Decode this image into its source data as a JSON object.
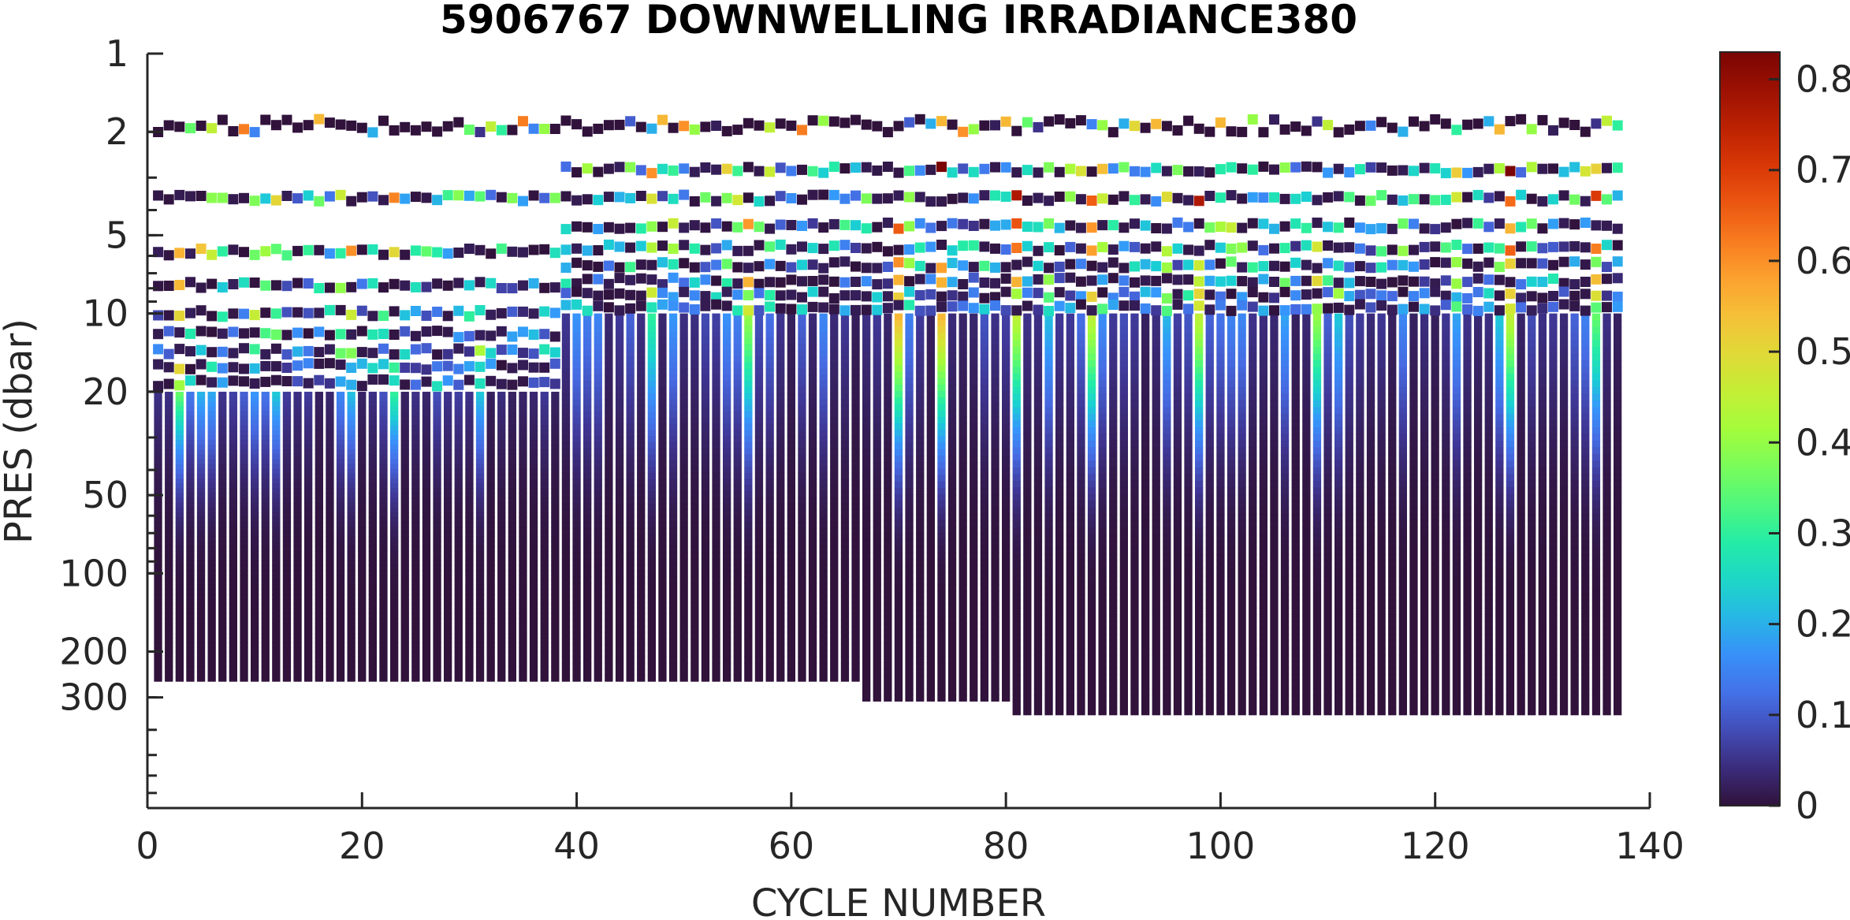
{
  "chart_data": {
    "type": "heatmap",
    "title": "5906767  DOWNWELLING IRRADIANCE380",
    "xlabel": "CYCLE NUMBER",
    "ylabel": "PRES (dbar)",
    "x_ticks": [
      "0",
      "20",
      "40",
      "60",
      "80",
      "100",
      "120",
      "140"
    ],
    "xlim": [
      0,
      140
    ],
    "y_scale": "log",
    "y_reversed": true,
    "y_ticks": [
      "1",
      "2",
      "5",
      "10",
      "20",
      "50",
      "100",
      "200",
      "300"
    ],
    "ylim": [
      1,
      800
    ],
    "colorbar": {
      "colormap": "turbo",
      "range": [
        0,
        0.83
      ],
      "ticks": [
        "0",
        "0.1",
        "0.2",
        "0.3",
        "0.4",
        "0.5",
        "0.6",
        "0.7",
        "0.8"
      ]
    },
    "cycles": {
      "first": 1,
      "last": 137
    },
    "max_pressure_segments": [
      {
        "cycle_from": 1,
        "cycle_to": 66,
        "pres_dbar": 260
      },
      {
        "cycle_from": 67,
        "cycle_to": 80,
        "pres_dbar": 310
      },
      {
        "cycle_from": 81,
        "cycle_to": 137,
        "pres_dbar": 350
      }
    ],
    "surface_pres_dbar": 1.9,
    "discrete_levels_dbar": {
      "cycles_1_to_38": [
        3.6,
        5.8,
        7.8,
        10,
        12,
        14,
        16,
        18.5
      ],
      "cycles_39_to_137": [
        2.8,
        3.6,
        4.6,
        5.6,
        6.5,
        7.5,
        8.5,
        9.5
      ]
    },
    "continuous_top_dbar": {
      "cycles_1_to_38": 20,
      "cycles_39_to_137": 10
    },
    "surface_values_sample": [
      0.0,
      0.02,
      0.55,
      0.0,
      0.35,
      0.05,
      0.45,
      0.3,
      0.0,
      0.62,
      0.15,
      0.4,
      0.0,
      0.2,
      0.5,
      0.0,
      0.55,
      0.0,
      0.3,
      0.1,
      0.0,
      0.2,
      0.55,
      0.0,
      0.6,
      0.4
    ],
    "bright_cycles": [
      {
        "cycle": 3,
        "max_value": 0.35
      },
      {
        "cycle": 23,
        "max_value": 0.3
      },
      {
        "cycle": 47,
        "max_value": 0.3
      },
      {
        "cycle": 56,
        "max_value": 0.4
      },
      {
        "cycle": 70,
        "max_value": 0.55
      },
      {
        "cycle": 74,
        "max_value": 0.55
      },
      {
        "cycle": 81,
        "max_value": 0.45
      },
      {
        "cycle": 88,
        "max_value": 0.45
      },
      {
        "cycle": 98,
        "max_value": 0.45
      },
      {
        "cycle": 109,
        "max_value": 0.4
      },
      {
        "cycle": 127,
        "max_value": 0.45
      },
      {
        "cycle": 135,
        "max_value": 0.35
      }
    ]
  }
}
